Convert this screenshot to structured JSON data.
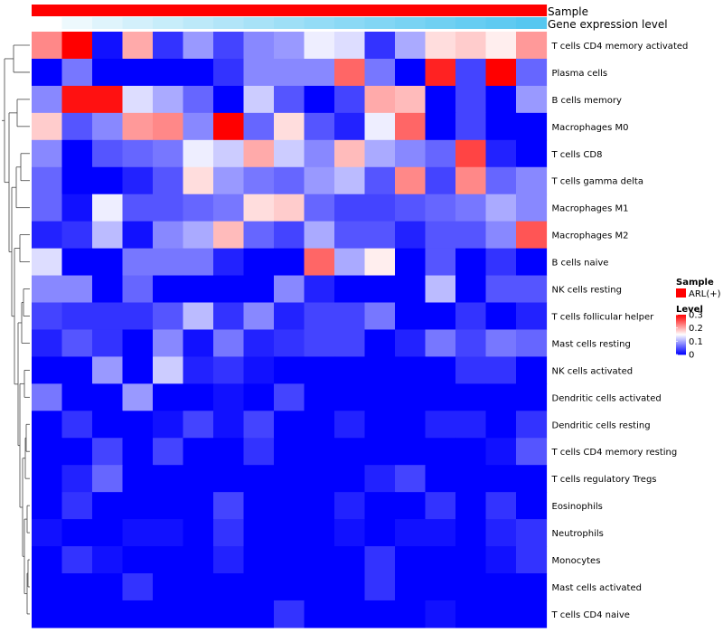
{
  "chart_data": {
    "type": "heatmap",
    "annotations": {
      "sample_label": "Sample",
      "expression_label": "Gene expression level",
      "sample_color": "#ff0000",
      "expression_low_color": "#ffffff",
      "expression_high_color": "#56c7f0"
    },
    "rows": [
      "T cells CD4 memory activated",
      "Plasma cells",
      "B cells memory",
      "Macrophages M0",
      "T cells CD8",
      "T cells gamma delta",
      "Macrophages M1",
      "Macrophages M2",
      "B cells naive",
      "NK cells resting",
      "T cells follicular helper",
      "Mast cells resting",
      "NK cells activated",
      "Dendritic cells activated",
      "Dendritic cells resting",
      "T cells CD4 memory resting",
      "T cells regulatory  Tregs",
      "Eosinophils",
      "Neutrophils",
      "Monocytes",
      "Mast cells activated",
      "T cells CD4 naive"
    ],
    "n_columns": 17,
    "values": [
      [
        0.22,
        0.3,
        0.01,
        0.2,
        0.03,
        0.09,
        0.04,
        0.08,
        0.09,
        0.14,
        0.13,
        0.03,
        0.1,
        0.17,
        0.18,
        0.16,
        0.21
      ],
      [
        0.0,
        0.07,
        0.0,
        0.0,
        0.0,
        0.0,
        0.03,
        0.08,
        0.08,
        0.08,
        0.24,
        0.07,
        0.0,
        0.28,
        0.04,
        0.3,
        0.06
      ],
      [
        0.08,
        0.29,
        0.29,
        0.13,
        0.1,
        0.06,
        0.0,
        0.12,
        0.05,
        0.0,
        0.04,
        0.2,
        0.19,
        0.0,
        0.04,
        0.0,
        0.09
      ],
      [
        0.18,
        0.05,
        0.08,
        0.21,
        0.22,
        0.08,
        0.3,
        0.06,
        0.17,
        0.05,
        0.02,
        0.14,
        0.24,
        0.0,
        0.04,
        0.0,
        0.0
      ],
      [
        0.08,
        0.0,
        0.05,
        0.06,
        0.07,
        0.14,
        0.12,
        0.2,
        0.12,
        0.08,
        0.19,
        0.1,
        0.08,
        0.06,
        0.26,
        0.02,
        0.0
      ],
      [
        0.06,
        0.0,
        0.0,
        0.02,
        0.05,
        0.17,
        0.09,
        0.07,
        0.06,
        0.09,
        0.11,
        0.05,
        0.22,
        0.04,
        0.22,
        0.06,
        0.08
      ],
      [
        0.06,
        0.01,
        0.14,
        0.05,
        0.05,
        0.06,
        0.07,
        0.17,
        0.18,
        0.06,
        0.04,
        0.04,
        0.05,
        0.06,
        0.07,
        0.1,
        0.08
      ],
      [
        0.02,
        0.03,
        0.11,
        0.01,
        0.08,
        0.1,
        0.19,
        0.06,
        0.04,
        0.1,
        0.05,
        0.05,
        0.02,
        0.05,
        0.05,
        0.08,
        0.25
      ],
      [
        0.13,
        0.0,
        0.0,
        0.07,
        0.07,
        0.07,
        0.02,
        0.0,
        0.0,
        0.24,
        0.1,
        0.16,
        0.0,
        0.05,
        0.0,
        0.03,
        0.0
      ],
      [
        0.08,
        0.08,
        0.0,
        0.06,
        0.0,
        0.0,
        0.0,
        0.0,
        0.08,
        0.02,
        0.0,
        0.0,
        0.0,
        0.11,
        0.0,
        0.05,
        0.05
      ],
      [
        0.04,
        0.03,
        0.03,
        0.03,
        0.05,
        0.11,
        0.03,
        0.08,
        0.02,
        0.04,
        0.04,
        0.07,
        0.0,
        0.0,
        0.03,
        0.0,
        0.02
      ],
      [
        0.02,
        0.05,
        0.03,
        0.0,
        0.08,
        0.01,
        0.07,
        0.02,
        0.03,
        0.04,
        0.04,
        0.0,
        0.02,
        0.07,
        0.04,
        0.07,
        0.06
      ],
      [
        0.0,
        0.0,
        0.09,
        0.0,
        0.12,
        0.02,
        0.03,
        0.01,
        0.0,
        0.0,
        0.0,
        0.0,
        0.0,
        0.0,
        0.03,
        0.03,
        0.0
      ],
      [
        0.07,
        0.0,
        0.0,
        0.09,
        0.0,
        0.0,
        0.01,
        0.0,
        0.04,
        0.0,
        0.0,
        0.0,
        0.0,
        0.0,
        0.0,
        0.0,
        0.0
      ],
      [
        0.0,
        0.03,
        0.0,
        0.0,
        0.01,
        0.04,
        0.01,
        0.04,
        0.0,
        0.0,
        0.02,
        0.0,
        0.0,
        0.02,
        0.02,
        0.0,
        0.03
      ],
      [
        0.0,
        0.0,
        0.04,
        0.0,
        0.04,
        0.0,
        0.0,
        0.03,
        0.0,
        0.0,
        0.0,
        0.0,
        0.0,
        0.0,
        0.0,
        0.01,
        0.05
      ],
      [
        0.0,
        0.02,
        0.06,
        0.0,
        0.0,
        0.0,
        0.0,
        0.0,
        0.0,
        0.0,
        0.0,
        0.02,
        0.04,
        0.0,
        0.0,
        0.0,
        0.0
      ],
      [
        0.0,
        0.03,
        0.0,
        0.0,
        0.0,
        0.0,
        0.04,
        0.0,
        0.0,
        0.0,
        0.02,
        0.0,
        0.0,
        0.03,
        0.0,
        0.03,
        0.0
      ],
      [
        0.01,
        0.0,
        0.0,
        0.01,
        0.01,
        0.0,
        0.03,
        0.0,
        0.0,
        0.0,
        0.01,
        0.0,
        0.01,
        0.01,
        0.0,
        0.02,
        0.03
      ],
      [
        0.0,
        0.03,
        0.01,
        0.0,
        0.0,
        0.0,
        0.02,
        0.0,
        0.0,
        0.0,
        0.0,
        0.03,
        0.0,
        0.0,
        0.0,
        0.01,
        0.03
      ],
      [
        0.0,
        0.0,
        0.0,
        0.03,
        0.0,
        0.0,
        0.0,
        0.0,
        0.0,
        0.0,
        0.0,
        0.03,
        0.0,
        0.0,
        0.0,
        0.0,
        0.0
      ],
      [
        0.0,
        0.0,
        0.0,
        0.0,
        0.0,
        0.0,
        0.0,
        0.0,
        0.03,
        0.0,
        0.0,
        0.0,
        0.0,
        0.01,
        0.0,
        0.0,
        0.0
      ]
    ],
    "color_scale": {
      "min": 0,
      "max": 0.3,
      "low_color": "#0000ff",
      "mid_color": "#ffffff",
      "high_color": "#ff0000",
      "mid_value": 0.15
    },
    "legend": {
      "sample_title": "Sample",
      "sample_entry": "ARL(+)",
      "level_title": "Level",
      "level_ticks": [
        "0.3",
        "0.2",
        "0.1",
        "0"
      ],
      "position": "right"
    }
  }
}
